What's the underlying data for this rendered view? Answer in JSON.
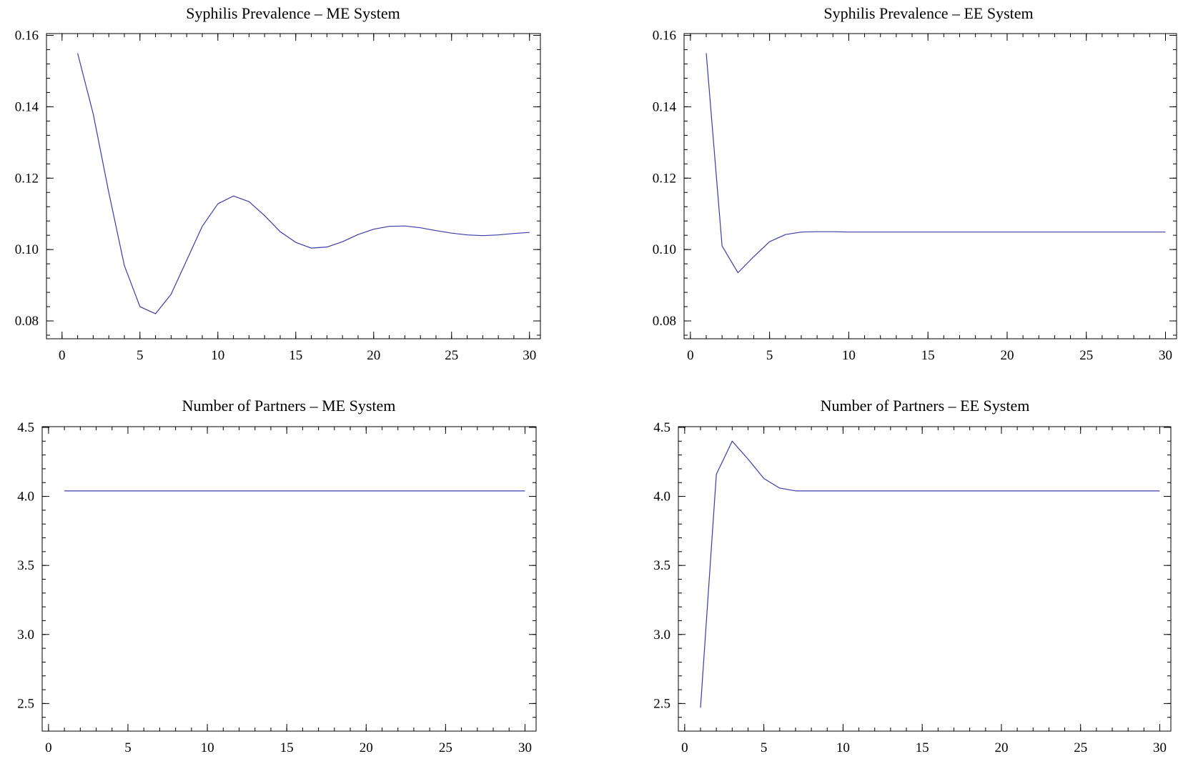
{
  "line_color": "#3b3ba8",
  "chart_data": [
    {
      "type": "line",
      "title": "Syphilis Prevalence – ME System",
      "xlabel": "",
      "ylabel": "",
      "xlim": [
        -1,
        30.7
      ],
      "ylim": [
        0.075,
        0.1605
      ],
      "xticks": [
        0,
        5,
        10,
        15,
        20,
        25,
        30
      ],
      "xtick_labels": [
        "0",
        "5",
        "10",
        "15",
        "20",
        "25",
        "30"
      ],
      "yticks": [
        0.08,
        0.1,
        0.12,
        0.14,
        0.16
      ],
      "ytick_labels": [
        "0.08",
        "0.10",
        "0.12",
        "0.14",
        "0.16"
      ],
      "grid": false,
      "x": [
        1,
        2,
        3,
        4,
        5,
        6,
        7,
        8,
        9,
        10,
        11,
        12,
        13,
        14,
        15,
        16,
        17,
        18,
        19,
        20,
        21,
        22,
        23,
        24,
        25,
        26,
        27,
        28,
        29,
        30
      ],
      "series": [
        {
          "values": [
            0.155,
            0.138,
            0.116,
            0.0955,
            0.084,
            0.082,
            0.0875,
            0.097,
            0.1065,
            0.1128,
            0.115,
            0.1134,
            0.1095,
            0.105,
            0.102,
            0.1004,
            0.1007,
            0.1022,
            0.1042,
            0.1057,
            0.1065,
            0.1066,
            0.1061,
            0.1053,
            0.1046,
            0.1041,
            0.1039,
            0.1041,
            0.1045,
            0.1048
          ]
        }
      ]
    },
    {
      "type": "line",
      "title": "Syphilis Prevalence – EE System",
      "xlabel": "",
      "ylabel": "",
      "xlim": [
        -0.4,
        30.7
      ],
      "ylim": [
        0.075,
        0.1605
      ],
      "xticks": [
        0,
        5,
        10,
        15,
        20,
        25,
        30
      ],
      "xtick_labels": [
        "0",
        "5",
        "10",
        "15",
        "20",
        "25",
        "30"
      ],
      "yticks": [
        0.08,
        0.1,
        0.12,
        0.14,
        0.16
      ],
      "ytick_labels": [
        "0.08",
        "0.10",
        "0.12",
        "0.14",
        "0.16"
      ],
      "grid": false,
      "x": [
        1,
        2,
        3,
        4,
        5,
        6,
        7,
        8,
        9,
        10,
        11,
        12,
        13,
        14,
        15,
        16,
        17,
        18,
        19,
        20,
        21,
        22,
        23,
        24,
        25,
        26,
        27,
        28,
        29,
        30
      ],
      "series": [
        {
          "values": [
            0.155,
            0.101,
            0.0935,
            0.098,
            0.1022,
            0.1042,
            0.1049,
            0.105,
            0.105,
            0.1049,
            0.1049,
            0.1049,
            0.1049,
            0.1049,
            0.1049,
            0.1049,
            0.1049,
            0.1049,
            0.1049,
            0.1049,
            0.1049,
            0.1049,
            0.1049,
            0.1049,
            0.1049,
            0.1049,
            0.1049,
            0.1049,
            0.1049,
            0.1049
          ]
        }
      ]
    },
    {
      "type": "line",
      "title": "Number of Partners – ME System",
      "xlabel": "",
      "ylabel": "",
      "xlim": [
        -0.4,
        30.7
      ],
      "ylim": [
        2.3,
        4.505
      ],
      "xticks": [
        0,
        5,
        10,
        15,
        20,
        25,
        30
      ],
      "xtick_labels": [
        "0",
        "5",
        "10",
        "15",
        "20",
        "25",
        "30"
      ],
      "yticks": [
        2.5,
        3.0,
        3.5,
        4.0,
        4.5
      ],
      "ytick_labels": [
        "2.5",
        "3.0",
        "3.5",
        "4.0",
        "4.5"
      ],
      "grid": false,
      "x": [
        1,
        2,
        3,
        4,
        5,
        6,
        7,
        8,
        9,
        10,
        11,
        12,
        13,
        14,
        15,
        16,
        17,
        18,
        19,
        20,
        21,
        22,
        23,
        24,
        25,
        26,
        27,
        28,
        29,
        30
      ],
      "series": [
        {
          "values": [
            4.04,
            4.04,
            4.04,
            4.04,
            4.04,
            4.04,
            4.04,
            4.04,
            4.04,
            4.04,
            4.04,
            4.04,
            4.04,
            4.04,
            4.04,
            4.04,
            4.04,
            4.04,
            4.04,
            4.04,
            4.04,
            4.04,
            4.04,
            4.04,
            4.04,
            4.04,
            4.04,
            4.04,
            4.04,
            4.04
          ]
        }
      ]
    },
    {
      "type": "line",
      "title": "Number of Partners – EE System",
      "xlabel": "",
      "ylabel": "",
      "xlim": [
        -0.4,
        30.7
      ],
      "ylim": [
        2.3,
        4.505
      ],
      "xticks": [
        0,
        5,
        10,
        15,
        20,
        25,
        30
      ],
      "xtick_labels": [
        "0",
        "5",
        "10",
        "15",
        "20",
        "25",
        "30"
      ],
      "yticks": [
        2.5,
        3.0,
        3.5,
        4.0,
        4.5
      ],
      "ytick_labels": [
        "2.5",
        "3.0",
        "3.5",
        "4.0",
        "4.5"
      ],
      "grid": false,
      "x": [
        1,
        2,
        3,
        4,
        5,
        6,
        7,
        8,
        9,
        10,
        11,
        12,
        13,
        14,
        15,
        16,
        17,
        18,
        19,
        20,
        21,
        22,
        23,
        24,
        25,
        26,
        27,
        28,
        29,
        30
      ],
      "series": [
        {
          "values": [
            2.47,
            4.16,
            4.4,
            4.27,
            4.13,
            4.06,
            4.04,
            4.04,
            4.04,
            4.04,
            4.04,
            4.04,
            4.04,
            4.04,
            4.04,
            4.04,
            4.04,
            4.04,
            4.04,
            4.04,
            4.04,
            4.04,
            4.04,
            4.04,
            4.04,
            4.04,
            4.04,
            4.04,
            4.04,
            4.04
          ]
        }
      ]
    }
  ]
}
